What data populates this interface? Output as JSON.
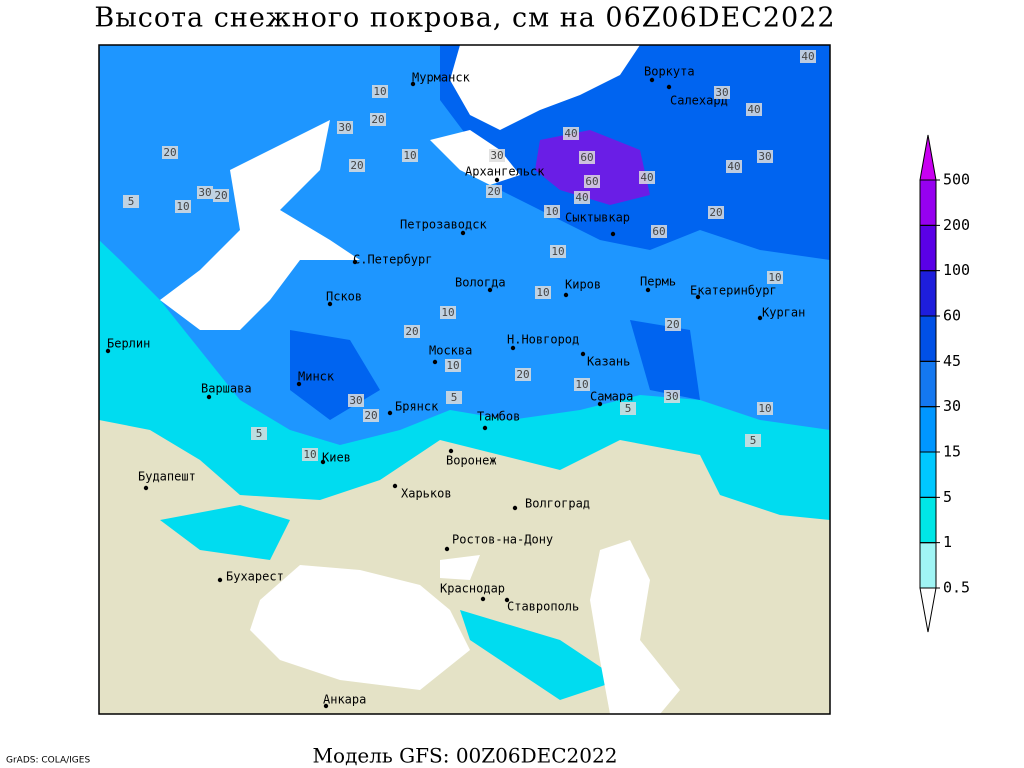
{
  "header": {
    "title": "Высота снежного покрова, см на 06Z06DEC2022"
  },
  "footer": {
    "model": "Модель GFS: 00Z06DEC2022",
    "credit": "GrADS: COLA/IGES"
  },
  "legend": {
    "levels": [
      0.5,
      1,
      5,
      15,
      30,
      45,
      60,
      100,
      200,
      500
    ],
    "colors": [
      "#ffffff",
      "#a0f5f5",
      "#00e6e6",
      "#00c8ff",
      "#0096ff",
      "#1478f0",
      "#0050e6",
      "#1e1edc",
      "#5a00e6",
      "#9600f0",
      "#c800f0"
    ]
  },
  "cities": [
    "Мурманск",
    "Архангельск",
    "Петрозаводск",
    "С.Петербург",
    "Вологда",
    "Сыктывкар",
    "Киров",
    "Пермь",
    "Екатеринбург",
    "Курган",
    "Воркута",
    "Салехард",
    "Псков",
    "Берлин",
    "Варшава",
    "Минск",
    "Москва",
    "Н.Новгород",
    "Казань",
    "Самара",
    "Брянск",
    "Тамбов",
    "Киев",
    "Воронеж",
    "Будапешт",
    "Харьков",
    "Волгоград",
    "Ростов-на-Дону",
    "Бухарест",
    "Краснодар",
    "Ставрополь",
    "Анкара"
  ],
  "contour_labels": [
    10,
    30,
    20,
    20,
    30,
    20,
    5,
    10,
    10,
    20,
    30,
    20,
    40,
    60,
    60,
    40,
    40,
    60,
    20,
    40,
    30,
    40,
    30,
    40,
    10,
    10,
    10,
    10,
    20,
    10,
    20,
    10,
    20,
    30,
    10,
    10,
    5,
    5,
    10,
    5,
    30,
    20,
    5
  ]
}
